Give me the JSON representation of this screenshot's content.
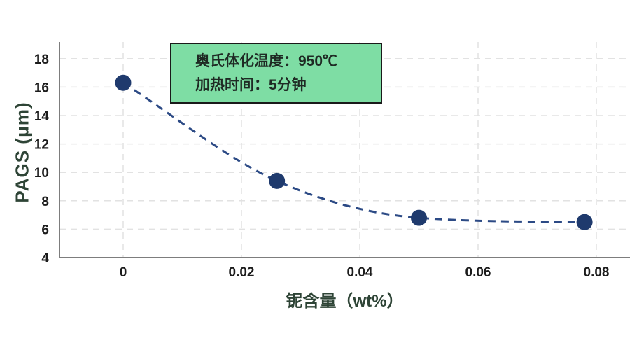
{
  "chart_data": {
    "type": "scatter",
    "title": "",
    "xlabel": "铌含量（wt%）",
    "ylabel": "PAGS (μm)",
    "xlim": [
      -0.0108,
      0.0857
    ],
    "ylim": [
      4,
      19.2
    ],
    "grid": "dashed-both",
    "legend_position": "none",
    "xticks": [
      0,
      0.02,
      0.04,
      0.06,
      0.08
    ],
    "yticks": [
      4,
      6,
      8,
      10,
      12,
      14,
      16,
      18
    ],
    "series": [
      {
        "name": "PAGS-vs-Nb",
        "style": "dashed-line-with-markers",
        "x": [
          0,
          0.026,
          0.05,
          0.078
        ],
        "y": [
          16.3,
          9.4,
          6.8,
          6.5
        ]
      }
    ]
  },
  "annotation": {
    "line1": "奥氏体化温度：950℃",
    "line2": "加热时间：5分钟",
    "background": "#7edda4",
    "border": "#1a1a1a",
    "text_color": "#1f2a24"
  },
  "colors": {
    "marker": "#1f3a6d",
    "line": "#2c4a85",
    "grid": "#e2e2e2",
    "axis": "#7d7d7d",
    "tick_text": "#1c1c1c",
    "axis_title": "#2e4436"
  }
}
